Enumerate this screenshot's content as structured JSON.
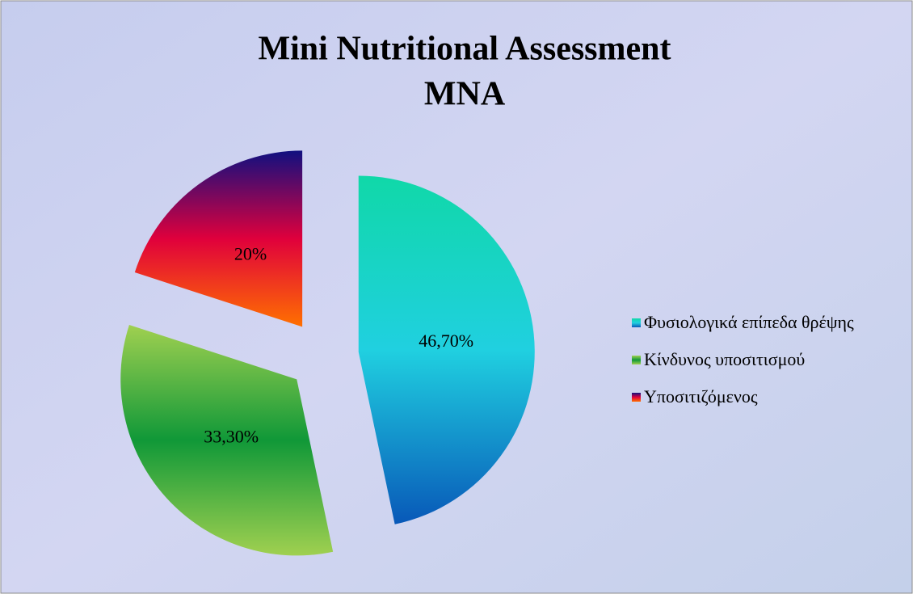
{
  "chart_data": {
    "type": "pie",
    "title": "Mini Nutritional Assessment",
    "subtitle": "MNA",
    "categories": [
      "Φυσιολογικά επίπεδα θρέψης",
      "Κίνδυνος υποσιτισμού",
      "Υποσιτιζόμενος"
    ],
    "values": [
      46.7,
      33.3,
      20
    ],
    "value_labels": [
      "46,70%",
      "33,30%",
      "20%"
    ],
    "colors": [
      [
        "#10d8a8",
        "#20d0e0",
        "#0858b8"
      ],
      [
        "#a0d050",
        "#109838",
        "#a0d050"
      ],
      [
        "#101080",
        "#e0003c",
        "#ff7000"
      ]
    ],
    "legend": "right"
  }
}
